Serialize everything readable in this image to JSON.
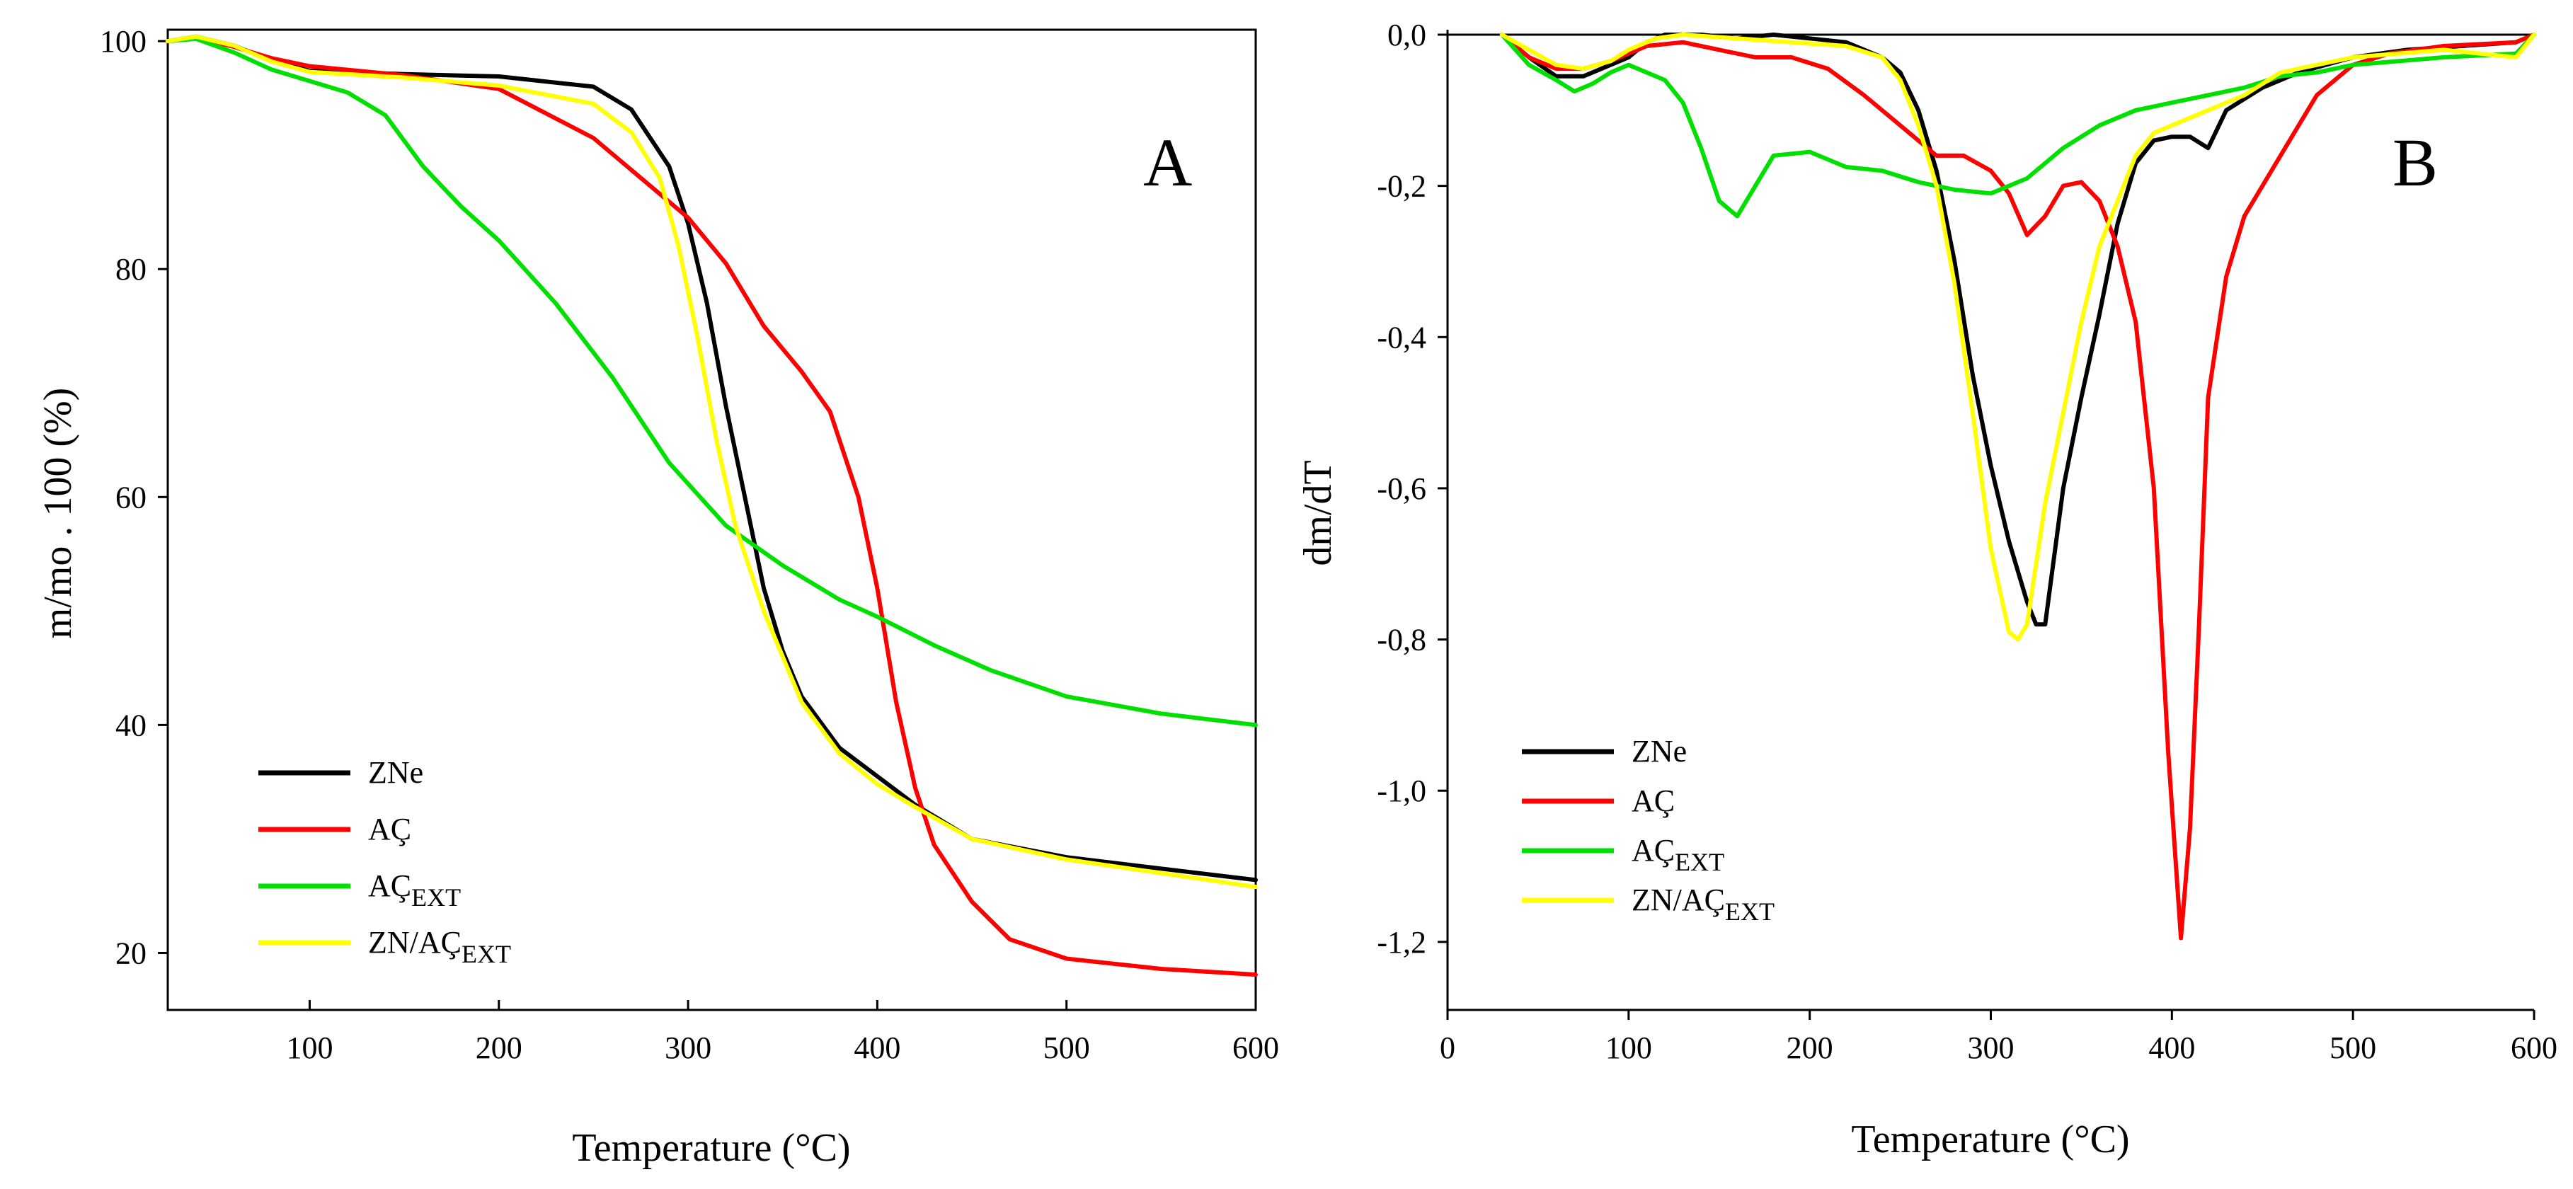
{
  "chart_data": [
    {
      "type": "line",
      "panel_label": "A",
      "xlabel": "Temperature (°C)",
      "ylabel": "m/mo . 100 (%)",
      "xlim": [
        25,
        600
      ],
      "ylim": [
        15,
        101
      ],
      "x_ticks": [
        100,
        200,
        300,
        400,
        500,
        600
      ],
      "y_ticks": [
        20,
        40,
        60,
        80,
        100
      ],
      "legend_position": "bottom-left",
      "series": [
        {
          "name": "ZNe",
          "name_sub": "",
          "color": "#000000",
          "points": [
            [
              25,
              100
            ],
            [
              40,
              100.4
            ],
            [
              60,
              99.6
            ],
            [
              80,
              98.3
            ],
            [
              100,
              97.4
            ],
            [
              150,
              97.1
            ],
            [
              200,
              96.9
            ],
            [
              250,
              96.0
            ],
            [
              270,
              94.0
            ],
            [
              290,
              89.0
            ],
            [
              300,
              84.0
            ],
            [
              310,
              77.0
            ],
            [
              320,
              68.0
            ],
            [
              330,
              60.0
            ],
            [
              340,
              52.0
            ],
            [
              350,
              46.5
            ],
            [
              360,
              42.5
            ],
            [
              380,
              38.0
            ],
            [
              400,
              35.5
            ],
            [
              420,
              33.0
            ],
            [
              450,
              30.0
            ],
            [
              500,
              28.4
            ],
            [
              550,
              27.4
            ],
            [
              600,
              26.4
            ]
          ]
        },
        {
          "name": "AÇ",
          "name_sub": "",
          "color": "#ff0000",
          "points": [
            [
              25,
              100
            ],
            [
              40,
              100.3
            ],
            [
              60,
              99.5
            ],
            [
              80,
              98.5
            ],
            [
              100,
              97.8
            ],
            [
              150,
              97.0
            ],
            [
              200,
              95.8
            ],
            [
              250,
              91.5
            ],
            [
              300,
              84.5
            ],
            [
              320,
              80.5
            ],
            [
              340,
              75.0
            ],
            [
              360,
              71.0
            ],
            [
              375,
              67.5
            ],
            [
              390,
              60.0
            ],
            [
              400,
              52.0
            ],
            [
              405,
              47.0
            ],
            [
              410,
              42.0
            ],
            [
              420,
              34.5
            ],
            [
              430,
              29.5
            ],
            [
              450,
              24.5
            ],
            [
              470,
              21.2
            ],
            [
              500,
              19.5
            ],
            [
              550,
              18.6
            ],
            [
              600,
              18.1
            ]
          ]
        },
        {
          "name": "AÇ",
          "name_sub": "EXT",
          "color": "#00e000",
          "points": [
            [
              25,
              100
            ],
            [
              40,
              100.2
            ],
            [
              60,
              99.0
            ],
            [
              80,
              97.5
            ],
            [
              100,
              96.5
            ],
            [
              120,
              95.5
            ],
            [
              140,
              93.5
            ],
            [
              160,
              89.0
            ],
            [
              180,
              85.5
            ],
            [
              200,
              82.5
            ],
            [
              230,
              77.0
            ],
            [
              260,
              70.5
            ],
            [
              290,
              63.0
            ],
            [
              320,
              57.5
            ],
            [
              350,
              54.0
            ],
            [
              380,
              51.0
            ],
            [
              400,
              49.5
            ],
            [
              430,
              47.0
            ],
            [
              460,
              44.8
            ],
            [
              500,
              42.5
            ],
            [
              550,
              41.0
            ],
            [
              600,
              40.0
            ]
          ]
        },
        {
          "name": "ZN/AÇ",
          "name_sub": "EXT",
          "color": "#ffff00",
          "points": [
            [
              25,
              100
            ],
            [
              40,
              100.4
            ],
            [
              60,
              99.6
            ],
            [
              80,
              98.2
            ],
            [
              100,
              97.3
            ],
            [
              150,
              96.8
            ],
            [
              200,
              96.1
            ],
            [
              250,
              94.5
            ],
            [
              270,
              92.0
            ],
            [
              285,
              88.0
            ],
            [
              295,
              82.0
            ],
            [
              305,
              74.0
            ],
            [
              315,
              65.0
            ],
            [
              325,
              57.5
            ],
            [
              340,
              50.0
            ],
            [
              350,
              46.0
            ],
            [
              360,
              42.0
            ],
            [
              380,
              37.5
            ],
            [
              400,
              34.8
            ],
            [
              420,
              32.8
            ],
            [
              450,
              30.0
            ],
            [
              500,
              28.2
            ],
            [
              550,
              27.0
            ],
            [
              600,
              25.8
            ]
          ]
        }
      ]
    },
    {
      "type": "line",
      "panel_label": "B",
      "xlabel": "Temperature (°C)",
      "ylabel": "dm/dT",
      "xlim": [
        0,
        600
      ],
      "ylim": [
        -1.29,
        0
      ],
      "x_ticks": [
        0,
        100,
        200,
        300,
        400,
        500,
        600
      ],
      "y_ticks": [
        0.0,
        -0.2,
        -0.4,
        -0.6,
        -0.8,
        -1.0,
        -1.2
      ],
      "y_tick_labels": [
        "0,0",
        "-0,2",
        "-0,4",
        "-0,6",
        "-0,8",
        "-1,0",
        "-1,2"
      ],
      "legend_position": "bottom-left",
      "series": [
        {
          "name": "ZNe",
          "name_sub": "",
          "color": "#000000",
          "points": [
            [
              30,
              0
            ],
            [
              45,
              -0.03
            ],
            [
              60,
              -0.055
            ],
            [
              75,
              -0.055
            ],
            [
              90,
              -0.04
            ],
            [
              100,
              -0.03
            ],
            [
              110,
              -0.01
            ],
            [
              120,
              0
            ],
            [
              140,
              0
            ],
            [
              160,
              -0.005
            ],
            [
              180,
              0
            ],
            [
              200,
              -0.005
            ],
            [
              220,
              -0.01
            ],
            [
              240,
              -0.03
            ],
            [
              250,
              -0.05
            ],
            [
              260,
              -0.1
            ],
            [
              270,
              -0.18
            ],
            [
              280,
              -0.3
            ],
            [
              290,
              -0.45
            ],
            [
              300,
              -0.57
            ],
            [
              310,
              -0.67
            ],
            [
              320,
              -0.75
            ],
            [
              325,
              -0.78
            ],
            [
              330,
              -0.78
            ],
            [
              340,
              -0.6
            ],
            [
              350,
              -0.48
            ],
            [
              360,
              -0.37
            ],
            [
              370,
              -0.25
            ],
            [
              380,
              -0.17
            ],
            [
              390,
              -0.14
            ],
            [
              400,
              -0.135
            ],
            [
              410,
              -0.135
            ],
            [
              420,
              -0.15
            ],
            [
              430,
              -0.1
            ],
            [
              450,
              -0.07
            ],
            [
              470,
              -0.05
            ],
            [
              500,
              -0.03
            ],
            [
              530,
              -0.02
            ],
            [
              560,
              -0.015
            ],
            [
              590,
              -0.01
            ],
            [
              600,
              0
            ]
          ]
        },
        {
          "name": "AÇ",
          "name_sub": "",
          "color": "#ff0000",
          "points": [
            [
              30,
              0
            ],
            [
              45,
              -0.03
            ],
            [
              60,
              -0.045
            ],
            [
              75,
              -0.045
            ],
            [
              90,
              -0.035
            ],
            [
              110,
              -0.015
            ],
            [
              130,
              -0.01
            ],
            [
              150,
              -0.02
            ],
            [
              170,
              -0.03
            ],
            [
              190,
              -0.03
            ],
            [
              210,
              -0.045
            ],
            [
              230,
              -0.08
            ],
            [
              250,
              -0.12
            ],
            [
              270,
              -0.16
            ],
            [
              285,
              -0.16
            ],
            [
              300,
              -0.18
            ],
            [
              310,
              -0.21
            ],
            [
              320,
              -0.265
            ],
            [
              330,
              -0.24
            ],
            [
              340,
              -0.2
            ],
            [
              350,
              -0.195
            ],
            [
              360,
              -0.22
            ],
            [
              370,
              -0.28
            ],
            [
              380,
              -0.38
            ],
            [
              390,
              -0.6
            ],
            [
              398,
              -0.95
            ],
            [
              405,
              -1.195
            ],
            [
              410,
              -1.05
            ],
            [
              415,
              -0.78
            ],
            [
              420,
              -0.48
            ],
            [
              430,
              -0.32
            ],
            [
              440,
              -0.24
            ],
            [
              460,
              -0.16
            ],
            [
              480,
              -0.08
            ],
            [
              500,
              -0.04
            ],
            [
              520,
              -0.025
            ],
            [
              550,
              -0.015
            ],
            [
              590,
              -0.01
            ],
            [
              600,
              0
            ]
          ]
        },
        {
          "name": "AÇ",
          "name_sub": "EXT",
          "color": "#00e000",
          "points": [
            [
              30,
              0
            ],
            [
              45,
              -0.04
            ],
            [
              60,
              -0.06
            ],
            [
              70,
              -0.075
            ],
            [
              80,
              -0.065
            ],
            [
              90,
              -0.05
            ],
            [
              100,
              -0.04
            ],
            [
              110,
              -0.05
            ],
            [
              120,
              -0.06
            ],
            [
              130,
              -0.09
            ],
            [
              140,
              -0.15
            ],
            [
              150,
              -0.22
            ],
            [
              160,
              -0.24
            ],
            [
              170,
              -0.2
            ],
            [
              180,
              -0.16
            ],
            [
              200,
              -0.155
            ],
            [
              220,
              -0.175
            ],
            [
              240,
              -0.18
            ],
            [
              260,
              -0.195
            ],
            [
              280,
              -0.205
            ],
            [
              300,
              -0.21
            ],
            [
              320,
              -0.19
            ],
            [
              340,
              -0.15
            ],
            [
              360,
              -0.12
            ],
            [
              380,
              -0.1
            ],
            [
              400,
              -0.09
            ],
            [
              420,
              -0.08
            ],
            [
              440,
              -0.07
            ],
            [
              460,
              -0.055
            ],
            [
              480,
              -0.05
            ],
            [
              500,
              -0.04
            ],
            [
              550,
              -0.03
            ],
            [
              590,
              -0.025
            ],
            [
              600,
              0
            ]
          ]
        },
        {
          "name": "ZN/AÇ",
          "name_sub": "EXT",
          "color": "#ffff00",
          "points": [
            [
              30,
              0
            ],
            [
              45,
              -0.02
            ],
            [
              60,
              -0.04
            ],
            [
              75,
              -0.045
            ],
            [
              90,
              -0.035
            ],
            [
              100,
              -0.02
            ],
            [
              115,
              -0.005
            ],
            [
              130,
              0
            ],
            [
              160,
              -0.005
            ],
            [
              190,
              -0.01
            ],
            [
              220,
              -0.015
            ],
            [
              240,
              -0.03
            ],
            [
              250,
              -0.06
            ],
            [
              260,
              -0.12
            ],
            [
              270,
              -0.2
            ],
            [
              280,
              -0.33
            ],
            [
              290,
              -0.5
            ],
            [
              300,
              -0.68
            ],
            [
              310,
              -0.79
            ],
            [
              315,
              -0.8
            ],
            [
              320,
              -0.78
            ],
            [
              330,
              -0.62
            ],
            [
              340,
              -0.5
            ],
            [
              350,
              -0.38
            ],
            [
              360,
              -0.28
            ],
            [
              370,
              -0.22
            ],
            [
              380,
              -0.16
            ],
            [
              390,
              -0.13
            ],
            [
              400,
              -0.12
            ],
            [
              420,
              -0.1
            ],
            [
              440,
              -0.08
            ],
            [
              460,
              -0.05
            ],
            [
              480,
              -0.04
            ],
            [
              500,
              -0.03
            ],
            [
              550,
              -0.02
            ],
            [
              590,
              -0.03
            ],
            [
              600,
              0
            ]
          ]
        }
      ]
    }
  ]
}
